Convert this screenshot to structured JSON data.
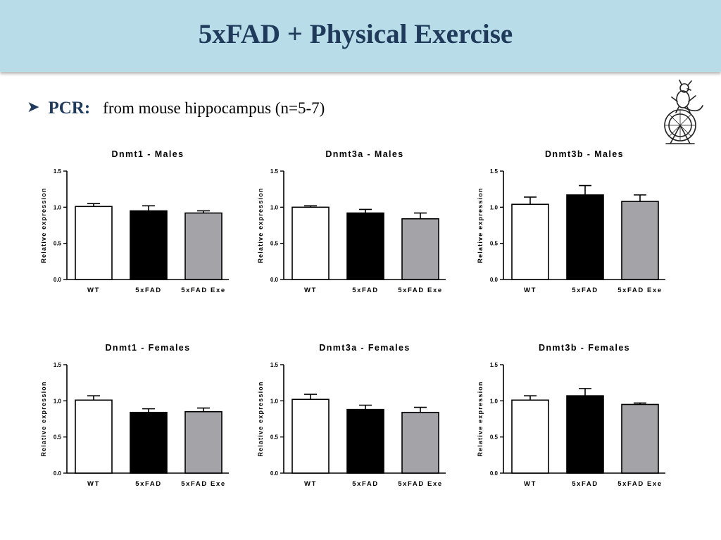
{
  "slide": {
    "title": "5xFAD + Physical Exercise",
    "bullet_label": "PCR:",
    "bullet_text": "from mouse hippocampus (n=5-7)",
    "mascot_icon": "mouse-on-exercise-wheel-icon"
  },
  "chart_data": [
    {
      "type": "bar",
      "title": "Dnmt1 - Males",
      "ylabel": "Relative expression",
      "categories": [
        "WT",
        "5xFAD",
        "5xFAD Exe"
      ],
      "values": [
        1.01,
        0.95,
        0.92
      ],
      "errors": [
        0.04,
        0.07,
        0.03
      ],
      "colors": [
        "#ffffff",
        "#000000",
        "#a3a3a8"
      ],
      "ylim": [
        0,
        1.5
      ],
      "yticks": [
        "0.0",
        "0.5",
        "1.0",
        "1.5"
      ]
    },
    {
      "type": "bar",
      "title": "Dnmt3a - Males",
      "ylabel": "Relative expression",
      "categories": [
        "WT",
        "5xFAD",
        "5xFAD Exe"
      ],
      "values": [
        1.0,
        0.92,
        0.84
      ],
      "errors": [
        0.02,
        0.05,
        0.08
      ],
      "colors": [
        "#ffffff",
        "#000000",
        "#a3a3a8"
      ],
      "ylim": [
        0,
        1.5
      ],
      "yticks": [
        "0.0",
        "0.5",
        "1.0",
        "1.5"
      ]
    },
    {
      "type": "bar",
      "title": "Dnmt3b - Males",
      "ylabel": "Relative expression",
      "categories": [
        "WT",
        "5xFAD",
        "5xFAD Exe"
      ],
      "values": [
        1.04,
        1.17,
        1.08
      ],
      "errors": [
        0.1,
        0.13,
        0.09
      ],
      "colors": [
        "#ffffff",
        "#000000",
        "#a3a3a8"
      ],
      "ylim": [
        0,
        1.5
      ],
      "yticks": [
        "0.0",
        "0.5",
        "1.0",
        "1.5"
      ]
    },
    {
      "type": "bar",
      "title": "Dnmt1 - Females",
      "ylabel": "Relative expression",
      "categories": [
        "WT",
        "5xFAD",
        "5xFAD Exe"
      ],
      "values": [
        1.01,
        0.84,
        0.85
      ],
      "errors": [
        0.06,
        0.05,
        0.05
      ],
      "colors": [
        "#ffffff",
        "#000000",
        "#a3a3a8"
      ],
      "ylim": [
        0,
        1.5
      ],
      "yticks": [
        "0.0",
        "0.5",
        "1.0",
        "1.5"
      ]
    },
    {
      "type": "bar",
      "title": "Dnmt3a - Females",
      "ylabel": "Relative expression",
      "categories": [
        "WT",
        "5xFAD",
        "5xFAD Exe"
      ],
      "values": [
        1.02,
        0.88,
        0.84
      ],
      "errors": [
        0.07,
        0.06,
        0.07
      ],
      "colors": [
        "#ffffff",
        "#000000",
        "#a3a3a8"
      ],
      "ylim": [
        0,
        1.5
      ],
      "yticks": [
        "0.0",
        "0.5",
        "1.0",
        "1.5"
      ]
    },
    {
      "type": "bar",
      "title": "Dnmt3b - Females",
      "ylabel": "Relative expression",
      "categories": [
        "WT",
        "5xFAD",
        "5xFAD Exe"
      ],
      "values": [
        1.01,
        1.07,
        0.95
      ],
      "errors": [
        0.06,
        0.1,
        0.02
      ],
      "colors": [
        "#ffffff",
        "#000000",
        "#a3a3a8"
      ],
      "ylim": [
        0,
        1.5
      ],
      "yticks": [
        "0.0",
        "0.5",
        "1.0",
        "1.5"
      ]
    }
  ]
}
